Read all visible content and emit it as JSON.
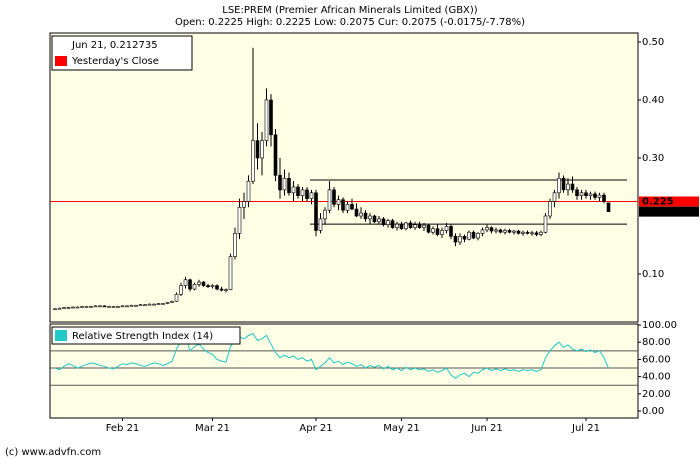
{
  "chart_data": {
    "type": "candlestick",
    "title": "LSE:PREM (Premier African Minerals Limited (GBX))",
    "subtitle": "Open: 0.2225 High: 0.2225 Low: 0.2075 Cur: 0.2075 (-0.0175/-7.78%)",
    "legend_label": "Jun 21, 0.212735",
    "reference_line": {
      "name": "Yesterday's Close",
      "value": 0.225,
      "label": "0.225",
      "color": "#ff0000"
    },
    "last_price": {
      "value": 0.2075,
      "label": "0.2075"
    },
    "trend_lines": [
      0.262,
      0.186
    ],
    "ylim": [
      0.0172,
      0.5155
    ],
    "yticks": [
      {
        "value": 0.1,
        "label": "0.10"
      },
      {
        "value": 0.3,
        "label": "0.30"
      },
      {
        "value": 0.4,
        "label": "0.40"
      },
      {
        "value": 0.5,
        "label": "0.50"
      }
    ],
    "categories": [
      null,
      null,
      null,
      null,
      null,
      null,
      null,
      null,
      null,
      null,
      null,
      null,
      null,
      null,
      null,
      "Feb 21",
      null,
      null,
      null,
      null,
      null,
      null,
      null,
      null,
      null,
      null,
      null,
      null,
      null,
      null,
      null,
      null,
      null,
      null,
      null,
      "Mar 21",
      null,
      null,
      null,
      null,
      null,
      null,
      null,
      null,
      null,
      null,
      null,
      null,
      null,
      null,
      null,
      null,
      null,
      null,
      null,
      null,
      null,
      null,
      "Apr 21",
      null,
      null,
      null,
      null,
      null,
      null,
      null,
      null,
      null,
      null,
      null,
      null,
      null,
      null,
      null,
      null,
      null,
      null,
      "May 21",
      null,
      null,
      null,
      null,
      null,
      null,
      null,
      null,
      null,
      null,
      null,
      null,
      null,
      null,
      null,
      null,
      null,
      null,
      "Jun 21",
      null,
      null,
      null,
      null,
      null,
      null,
      null,
      null,
      null,
      null,
      null,
      null,
      null,
      null,
      null,
      null,
      null,
      null,
      null,
      null,
      null,
      "Jul 21",
      null,
      null,
      null,
      null,
      null
    ],
    "ohlc": [
      [
        0.039,
        0.041,
        0.038,
        0.04
      ],
      [
        0.04,
        0.042,
        0.039,
        0.041
      ],
      [
        0.041,
        0.043,
        0.04,
        0.042
      ],
      [
        0.042,
        0.043,
        0.041,
        0.042
      ],
      [
        0.042,
        0.044,
        0.041,
        0.043
      ],
      [
        0.043,
        0.044,
        0.042,
        0.043
      ],
      [
        0.043,
        0.045,
        0.042,
        0.044
      ],
      [
        0.044,
        0.045,
        0.043,
        0.044
      ],
      [
        0.044,
        0.045,
        0.043,
        0.044
      ],
      [
        0.044,
        0.046,
        0.043,
        0.045
      ],
      [
        0.045,
        0.046,
        0.044,
        0.045
      ],
      [
        0.045,
        0.046,
        0.044,
        0.044
      ],
      [
        0.044,
        0.045,
        0.043,
        0.044
      ],
      [
        0.044,
        0.045,
        0.043,
        0.044
      ],
      [
        0.044,
        0.045,
        0.043,
        0.044
      ],
      [
        0.044,
        0.046,
        0.043,
        0.045
      ],
      [
        0.045,
        0.046,
        0.044,
        0.045
      ],
      [
        0.045,
        0.047,
        0.044,
        0.046
      ],
      [
        0.046,
        0.047,
        0.045,
        0.046
      ],
      [
        0.046,
        0.048,
        0.045,
        0.047
      ],
      [
        0.047,
        0.048,
        0.046,
        0.047
      ],
      [
        0.047,
        0.049,
        0.046,
        0.048
      ],
      [
        0.048,
        0.049,
        0.047,
        0.048
      ],
      [
        0.048,
        0.05,
        0.047,
        0.049
      ],
      [
        0.049,
        0.05,
        0.048,
        0.049
      ],
      [
        0.049,
        0.052,
        0.048,
        0.051
      ],
      [
        0.051,
        0.054,
        0.05,
        0.053
      ],
      [
        0.053,
        0.068,
        0.052,
        0.065
      ],
      [
        0.065,
        0.085,
        0.062,
        0.08
      ],
      [
        0.08,
        0.095,
        0.075,
        0.09
      ],
      [
        0.09,
        0.092,
        0.07,
        0.074
      ],
      [
        0.074,
        0.085,
        0.072,
        0.082
      ],
      [
        0.082,
        0.09,
        0.078,
        0.086
      ],
      [
        0.086,
        0.088,
        0.078,
        0.08
      ],
      [
        0.08,
        0.083,
        0.076,
        0.078
      ],
      [
        0.078,
        0.082,
        0.075,
        0.08
      ],
      [
        0.08,
        0.082,
        0.072,
        0.074
      ],
      [
        0.074,
        0.078,
        0.07,
        0.072
      ],
      [
        0.072,
        0.075,
        0.068,
        0.073
      ],
      [
        0.073,
        0.135,
        0.072,
        0.13
      ],
      [
        0.13,
        0.18,
        0.125,
        0.17
      ],
      [
        0.17,
        0.23,
        0.16,
        0.215
      ],
      [
        0.215,
        0.24,
        0.195,
        0.225
      ],
      [
        0.225,
        0.27,
        0.215,
        0.26
      ],
      [
        0.26,
        0.49,
        0.255,
        0.33
      ],
      [
        0.33,
        0.36,
        0.28,
        0.3
      ],
      [
        0.3,
        0.345,
        0.27,
        0.33
      ],
      [
        0.33,
        0.42,
        0.32,
        0.4
      ],
      [
        0.4,
        0.41,
        0.32,
        0.34
      ],
      [
        0.34,
        0.35,
        0.26,
        0.27
      ],
      [
        0.27,
        0.3,
        0.23,
        0.245
      ],
      [
        0.245,
        0.28,
        0.235,
        0.265
      ],
      [
        0.265,
        0.275,
        0.235,
        0.24
      ],
      [
        0.24,
        0.26,
        0.225,
        0.25
      ],
      [
        0.25,
        0.255,
        0.23,
        0.235
      ],
      [
        0.235,
        0.25,
        0.225,
        0.245
      ],
      [
        0.245,
        0.25,
        0.225,
        0.23
      ],
      [
        0.23,
        0.245,
        0.22,
        0.24
      ],
      [
        0.24,
        0.245,
        0.165,
        0.175
      ],
      [
        0.175,
        0.205,
        0.17,
        0.195
      ],
      [
        0.195,
        0.215,
        0.185,
        0.21
      ],
      [
        0.21,
        0.26,
        0.205,
        0.245
      ],
      [
        0.245,
        0.25,
        0.215,
        0.22
      ],
      [
        0.22,
        0.235,
        0.21,
        0.228
      ],
      [
        0.228,
        0.232,
        0.205,
        0.21
      ],
      [
        0.21,
        0.225,
        0.205,
        0.22
      ],
      [
        0.22,
        0.23,
        0.21,
        0.212
      ],
      [
        0.212,
        0.222,
        0.198,
        0.2
      ],
      [
        0.2,
        0.215,
        0.195,
        0.205
      ],
      [
        0.205,
        0.21,
        0.19,
        0.195
      ],
      [
        0.195,
        0.205,
        0.185,
        0.2
      ],
      [
        0.2,
        0.202,
        0.188,
        0.19
      ],
      [
        0.19,
        0.2,
        0.185,
        0.195
      ],
      [
        0.195,
        0.198,
        0.182,
        0.185
      ],
      [
        0.185,
        0.195,
        0.18,
        0.192
      ],
      [
        0.192,
        0.195,
        0.178,
        0.18
      ],
      [
        0.18,
        0.19,
        0.175,
        0.186
      ],
      [
        0.186,
        0.19,
        0.176,
        0.178
      ],
      [
        0.178,
        0.19,
        0.175,
        0.188
      ],
      [
        0.188,
        0.192,
        0.178,
        0.18
      ],
      [
        0.18,
        0.19,
        0.176,
        0.185
      ],
      [
        0.185,
        0.19,
        0.178,
        0.18
      ],
      [
        0.18,
        0.188,
        0.174,
        0.184
      ],
      [
        0.184,
        0.186,
        0.17,
        0.172
      ],
      [
        0.172,
        0.182,
        0.168,
        0.178
      ],
      [
        0.178,
        0.185,
        0.165,
        0.168
      ],
      [
        0.168,
        0.18,
        0.162,
        0.175
      ],
      [
        0.175,
        0.188,
        0.17,
        0.182
      ],
      [
        0.182,
        0.185,
        0.16,
        0.165
      ],
      [
        0.165,
        0.17,
        0.148,
        0.155
      ],
      [
        0.155,
        0.17,
        0.15,
        0.165
      ],
      [
        0.165,
        0.168,
        0.155,
        0.16
      ],
      [
        0.16,
        0.175,
        0.158,
        0.172
      ],
      [
        0.172,
        0.175,
        0.16,
        0.162
      ],
      [
        0.162,
        0.172,
        0.158,
        0.17
      ],
      [
        0.17,
        0.18,
        0.165,
        0.176
      ],
      [
        0.176,
        0.185,
        0.172,
        0.18
      ],
      [
        0.18,
        0.182,
        0.17,
        0.174
      ],
      [
        0.174,
        0.18,
        0.17,
        0.176
      ],
      [
        0.176,
        0.178,
        0.17,
        0.172
      ],
      [
        0.172,
        0.178,
        0.168,
        0.175
      ],
      [
        0.175,
        0.178,
        0.17,
        0.172
      ],
      [
        0.172,
        0.176,
        0.168,
        0.174
      ],
      [
        0.174,
        0.176,
        0.168,
        0.17
      ],
      [
        0.17,
        0.175,
        0.166,
        0.172
      ],
      [
        0.172,
        0.175,
        0.168,
        0.17
      ],
      [
        0.17,
        0.174,
        0.166,
        0.171
      ],
      [
        0.171,
        0.174,
        0.165,
        0.168
      ],
      [
        0.168,
        0.175,
        0.165,
        0.172
      ],
      [
        0.172,
        0.205,
        0.17,
        0.2
      ],
      [
        0.2,
        0.23,
        0.195,
        0.225
      ],
      [
        0.225,
        0.245,
        0.215,
        0.24
      ],
      [
        0.24,
        0.275,
        0.23,
        0.265
      ],
      [
        0.265,
        0.27,
        0.24,
        0.245
      ],
      [
        0.245,
        0.265,
        0.235,
        0.255
      ],
      [
        0.255,
        0.268,
        0.24,
        0.245
      ],
      [
        0.245,
        0.25,
        0.228,
        0.235
      ],
      [
        0.235,
        0.245,
        0.228,
        0.24
      ],
      [
        0.24,
        0.245,
        0.23,
        0.235
      ],
      [
        0.235,
        0.242,
        0.228,
        0.238
      ],
      [
        0.238,
        0.242,
        0.228,
        0.232
      ],
      [
        0.232,
        0.24,
        0.225,
        0.236
      ],
      [
        0.236,
        0.24,
        0.222,
        0.225
      ],
      [
        0.2225,
        0.2225,
        0.2075,
        0.2075
      ]
    ],
    "indicator": {
      "type": "line",
      "name": "Relative Strength Index (14)",
      "color": "#20c8c8",
      "ylim": [
        -8.1,
        101.2
      ],
      "yticks": [
        {
          "value": 0,
          "label": "0.00"
        },
        {
          "value": 20,
          "label": "20.00"
        },
        {
          "value": 40,
          "label": "40.00"
        },
        {
          "value": 60,
          "label": "60.00"
        },
        {
          "value": 80,
          "label": "80.00"
        },
        {
          "value": 100,
          "label": "100.00"
        }
      ],
      "reference_lines": [
        30,
        50,
        70
      ],
      "values": [
        50,
        48,
        52,
        55,
        53,
        50,
        52,
        54,
        56,
        55,
        53,
        52,
        50,
        49,
        52,
        55,
        54,
        56,
        55,
        53,
        52,
        54,
        56,
        55,
        53,
        55,
        58,
        72,
        82,
        88,
        70,
        75,
        78,
        72,
        68,
        66,
        60,
        58,
        57,
        75,
        82,
        86,
        84,
        88,
        90,
        82,
        84,
        88,
        78,
        68,
        62,
        65,
        62,
        64,
        60,
        62,
        58,
        60,
        48,
        52,
        56,
        62,
        56,
        58,
        54,
        57,
        55,
        52,
        54,
        50,
        53,
        51,
        53,
        49,
        52,
        48,
        50,
        47,
        51,
        48,
        50,
        48,
        49,
        46,
        48,
        45,
        47,
        50,
        42,
        38,
        42,
        44,
        40,
        45,
        44,
        48,
        50,
        47,
        49,
        47,
        49,
        47,
        48,
        46,
        48,
        47,
        48,
        46,
        48,
        62,
        70,
        76,
        80,
        74,
        77,
        72,
        70,
        72,
        69,
        71,
        68,
        70,
        62,
        50
      ]
    }
  },
  "footer": "(c) www.advfn.com"
}
